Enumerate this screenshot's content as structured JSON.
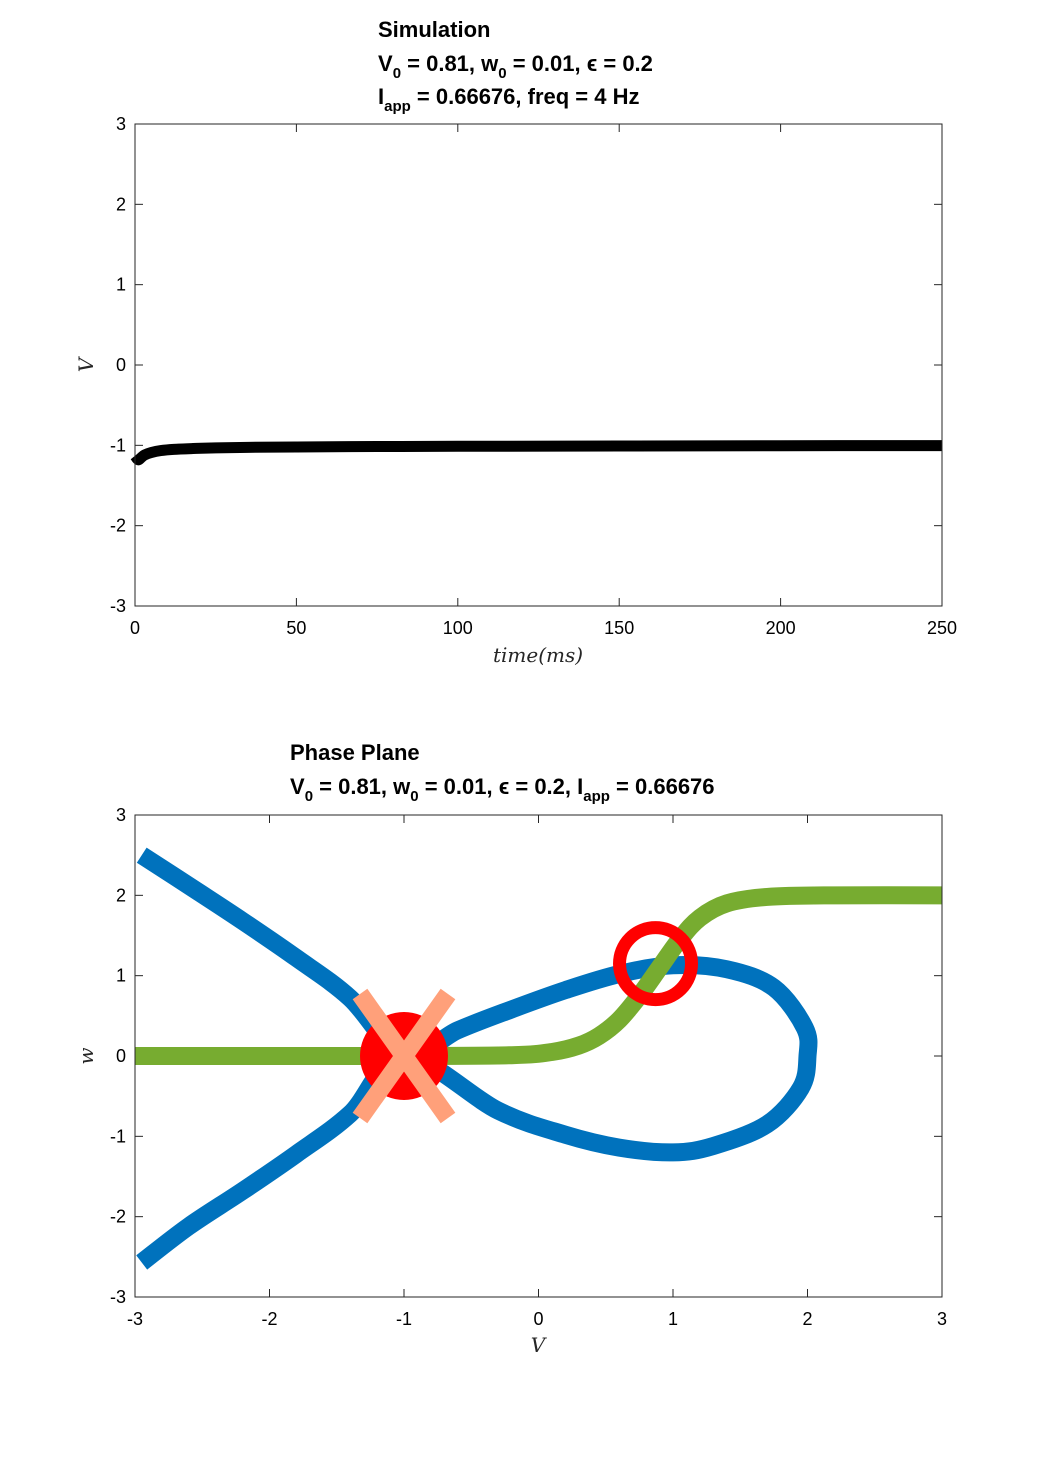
{
  "chart_data": [
    {
      "type": "line",
      "title_lines": [
        {
          "text": "Simulation"
        },
        {
          "main": "V",
          "sub": "0",
          "rest_a": " = 0.81, w",
          "sub2": "0",
          "rest_b": " = 0.01, ϵ = 0.2"
        },
        {
          "main": "I",
          "sub": "app",
          "rest_a": " = 0.66676, freq = 4 Hz"
        }
      ],
      "xlabel": "time(ms)",
      "ylabel": "V",
      "xlim": [
        0,
        250
      ],
      "ylim": [
        -3,
        3
      ],
      "xticks": [
        "0",
        "50",
        "100",
        "150",
        "200",
        "250"
      ],
      "yticks": [
        "-3",
        "-2",
        "-1",
        "0",
        "1",
        "2",
        "3"
      ],
      "series": [
        {
          "color": "#000000",
          "x": [
            0,
            1,
            2,
            3,
            5,
            8,
            12,
            18,
            25,
            35,
            50,
            75,
            100,
            150,
            200,
            250
          ],
          "values": [
            -1.13,
            -1.18,
            -1.15,
            -1.12,
            -1.09,
            -1.065,
            -1.05,
            -1.04,
            -1.032,
            -1.025,
            -1.02,
            -1.015,
            -1.012,
            -1.008,
            -1.005,
            -1.003
          ]
        }
      ]
    },
    {
      "type": "line",
      "title_lines": [
        {
          "text": "Phase Plane"
        },
        {
          "main": "V",
          "sub": "0",
          "rest_a": " = 0.81, w",
          "sub2": "0",
          "rest_b": " = 0.01, ϵ = 0.2, I",
          "sub3": "app",
          "rest_c": " = 0.66676"
        }
      ],
      "xlabel": "V",
      "ylabel": "w",
      "xlim": [
        -3,
        3
      ],
      "ylim": [
        -3,
        3
      ],
      "xticks": [
        "-3",
        "-2",
        "-1",
        "0",
        "1",
        "2",
        "3"
      ],
      "yticks": [
        "-3",
        "-2",
        "-1",
        "0",
        "1",
        "2",
        "3"
      ],
      "series": [
        {
          "kind": "v-nullcline",
          "color": "#0072BD",
          "w_range": [
            -2.5,
            2.5
          ],
          "relation": "V^2 = w^2 + 2.94*w*... (traced curve)",
          "points": [
            [
              -2.95,
              2.5
            ],
            [
              -2.6,
              2.12
            ],
            [
              -2.2,
              1.68
            ],
            [
              -1.8,
              1.22
            ],
            [
              -1.4,
              0.72
            ],
            [
              -1.0,
              0.0
            ],
            [
              -0.6,
              0.32
            ],
            [
              -0.2,
              0.58
            ],
            [
              0.2,
              0.82
            ],
            [
              0.6,
              1.02
            ],
            [
              1.0,
              1.13
            ],
            [
              1.4,
              1.08
            ],
            [
              1.75,
              0.85
            ],
            [
              1.98,
              0.35
            ],
            [
              2.0,
              0.0
            ],
            [
              1.95,
              -0.4
            ],
            [
              1.7,
              -0.85
            ],
            [
              1.3,
              -1.12
            ],
            [
              1.0,
              -1.2
            ],
            [
              0.6,
              -1.14
            ],
            [
              0.2,
              -0.98
            ],
            [
              -0.3,
              -0.68
            ],
            [
              -1.0,
              0.0
            ],
            [
              -1.4,
              -0.72
            ],
            [
              -1.8,
              -1.22
            ],
            [
              -2.2,
              -1.68
            ],
            [
              -2.6,
              -2.12
            ],
            [
              -2.95,
              -2.57
            ]
          ]
        },
        {
          "kind": "w-nullcline",
          "color": "#77AC30",
          "points": [
            [
              -3.0,
              0.0
            ],
            [
              -1.0,
              0.0
            ],
            [
              -0.2,
              0.01
            ],
            [
              0.1,
              0.05
            ],
            [
              0.3,
              0.13
            ],
            [
              0.45,
              0.25
            ],
            [
              0.6,
              0.45
            ],
            [
              0.75,
              0.75
            ],
            [
              0.9,
              1.1
            ],
            [
              1.05,
              1.45
            ],
            [
              1.2,
              1.72
            ],
            [
              1.4,
              1.9
            ],
            [
              1.7,
              1.98
            ],
            [
              2.2,
              2.0
            ],
            [
              3.0,
              2.0
            ]
          ]
        }
      ],
      "markers": [
        {
          "kind": "filled-circle",
          "color": "#FF0000",
          "x": -1.0,
          "y": 0.0
        },
        {
          "kind": "x-mark",
          "color": "#FFA07A",
          "x": -1.0,
          "y": 0.0
        },
        {
          "kind": "open-circle",
          "color": "#FF0000",
          "x": 0.87,
          "y": 1.15
        }
      ]
    }
  ]
}
